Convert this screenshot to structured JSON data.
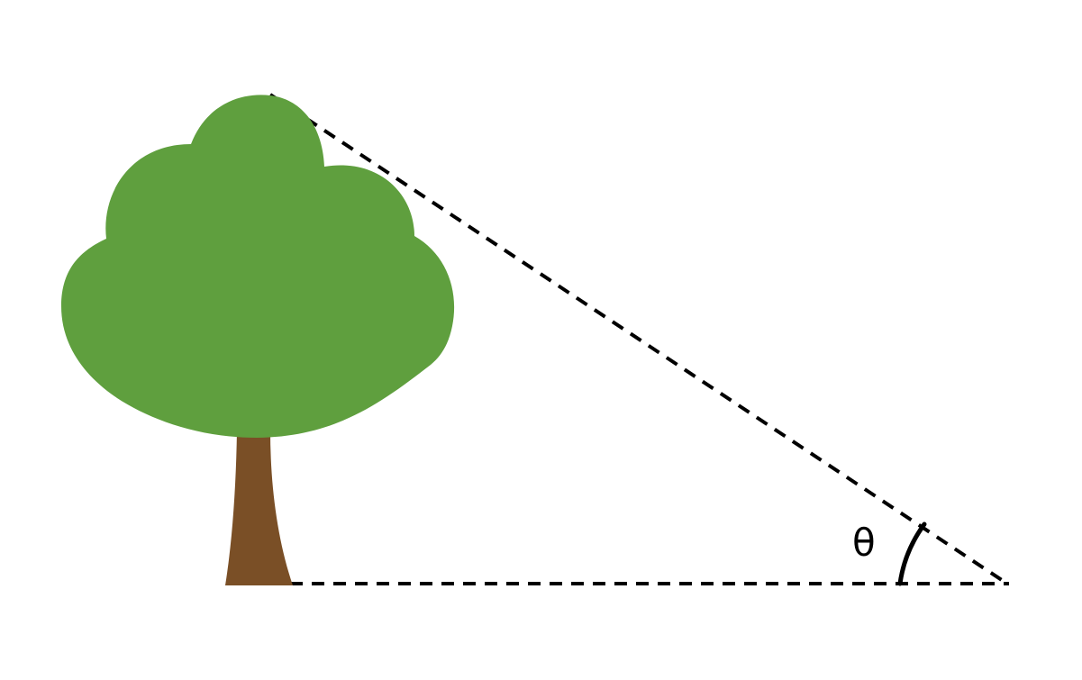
{
  "angle_label": "θ",
  "colors": {
    "foliage": "#5f9f3e",
    "trunk": "#7a4f26",
    "lines": "#000000",
    "background": "#ffffff"
  },
  "elements": {
    "tree": "tree",
    "sight_line": "dashed",
    "ground_line": "dashed",
    "angle_arc": "solid"
  }
}
